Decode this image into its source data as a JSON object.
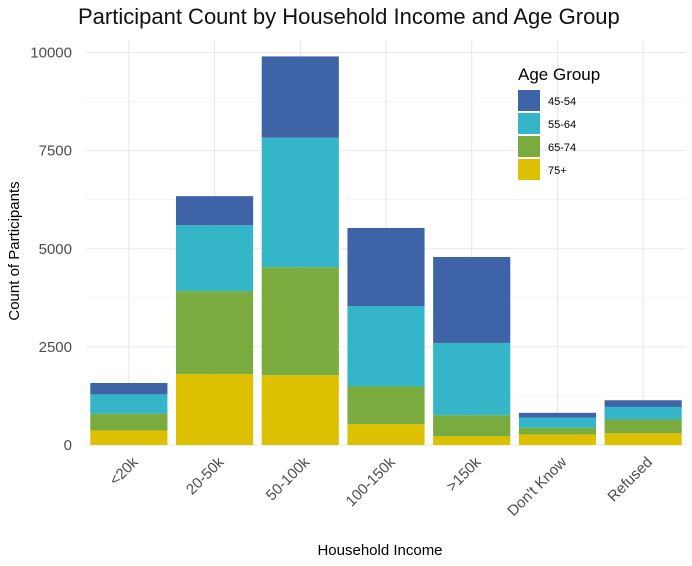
{
  "chart_data": {
    "type": "bar",
    "stacked": true,
    "title": "Participant Count by Household Income and Age Group",
    "xlabel": "Household Income",
    "ylabel": "Count of Participants",
    "categories": [
      "<20k",
      "20-50k",
      "50-100k",
      "100-150k",
      ">150k",
      "Don't Know",
      "Refused"
    ],
    "yticks": [
      0,
      2500,
      5000,
      7500,
      10000
    ],
    "ylim": [
      0,
      10400
    ],
    "grid": true,
    "legend": {
      "title": "Age Group",
      "position": "top-right"
    },
    "series": [
      {
        "name": "75+",
        "color": "#DDC000",
        "values": [
          370,
          1810,
          1780,
          530,
          220,
          270,
          300
        ]
      },
      {
        "name": "65-74",
        "color": "#79AB3E",
        "values": [
          430,
          2110,
          2750,
          960,
          540,
          170,
          350
        ]
      },
      {
        "name": "55-64",
        "color": "#34B6C8",
        "values": [
          490,
          1680,
          3300,
          2050,
          1840,
          260,
          320
        ]
      },
      {
        "name": "45-54",
        "color": "#3E63A6",
        "values": [
          290,
          740,
          2070,
          1990,
          2190,
          120,
          170
        ]
      }
    ],
    "legend_order": [
      "45-54",
      "55-64",
      "65-74",
      "75+"
    ]
  }
}
